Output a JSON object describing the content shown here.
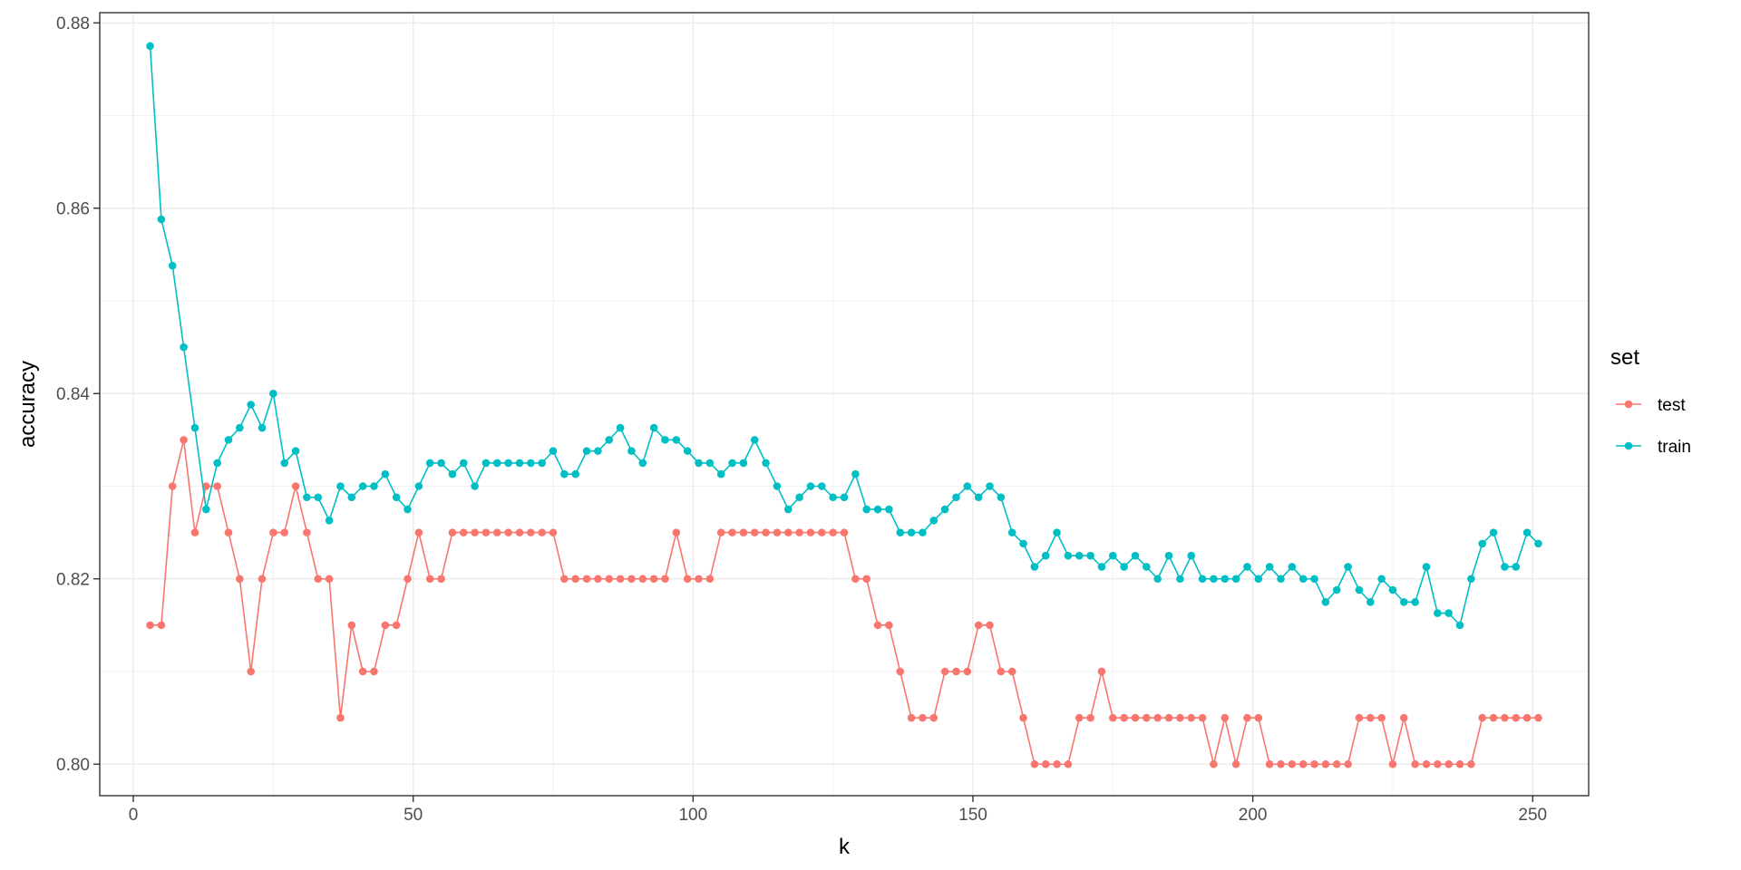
{
  "chart_data": {
    "type": "line",
    "xlabel": "k",
    "ylabel": "accuracy",
    "xlim": [
      -6,
      260
    ],
    "ylim": [
      0.7966,
      0.8811
    ],
    "x_ticks": [
      0,
      50,
      100,
      150,
      200,
      250
    ],
    "x_tick_labels": [
      "0",
      "50",
      "100",
      "150",
      "200",
      "250"
    ],
    "y_ticks": [
      0.8,
      0.82,
      0.84,
      0.86,
      0.88
    ],
    "y_tick_labels": [
      "0.80",
      "0.82",
      "0.84",
      "0.86",
      "0.88"
    ],
    "grid": true,
    "legend": {
      "title": "set",
      "position": "right"
    },
    "series": [
      {
        "name": "test",
        "color": "#F8766D",
        "x": [
          3,
          5,
          7,
          9,
          11,
          13,
          15,
          17,
          19,
          21,
          23,
          25,
          27,
          29,
          31,
          33,
          35,
          37,
          39,
          41,
          43,
          45,
          47,
          49,
          51,
          53,
          55,
          57,
          59,
          61,
          63,
          65,
          67,
          69,
          71,
          73,
          75,
          77,
          79,
          81,
          83,
          85,
          87,
          89,
          91,
          93,
          95,
          97,
          99,
          101,
          103,
          105,
          107,
          109,
          111,
          113,
          115,
          117,
          119,
          121,
          123,
          125,
          127,
          129,
          131,
          133,
          135,
          137,
          139,
          141,
          143,
          145,
          147,
          149,
          151,
          153,
          155,
          157,
          159,
          161,
          163,
          165,
          167,
          169,
          171,
          173,
          175,
          177,
          179,
          181,
          183,
          185,
          187,
          189,
          191,
          193,
          195,
          197,
          199,
          201,
          203,
          205,
          207,
          209,
          211,
          213,
          215,
          217,
          219,
          221,
          223,
          225,
          227,
          229,
          231,
          233,
          235,
          237,
          239,
          241,
          243,
          245,
          247,
          249,
          251
        ],
        "values": [
          0.815,
          0.815,
          0.83,
          0.835,
          0.825,
          0.83,
          0.83,
          0.825,
          0.82,
          0.81,
          0.82,
          0.825,
          0.825,
          0.83,
          0.825,
          0.82,
          0.82,
          0.805,
          0.815,
          0.81,
          0.81,
          0.815,
          0.815,
          0.82,
          0.825,
          0.82,
          0.82,
          0.825,
          0.825,
          0.825,
          0.825,
          0.825,
          0.825,
          0.825,
          0.825,
          0.825,
          0.825,
          0.82,
          0.82,
          0.82,
          0.82,
          0.82,
          0.82,
          0.82,
          0.82,
          0.82,
          0.82,
          0.825,
          0.82,
          0.82,
          0.82,
          0.825,
          0.825,
          0.825,
          0.825,
          0.825,
          0.825,
          0.825,
          0.825,
          0.825,
          0.825,
          0.825,
          0.825,
          0.82,
          0.82,
          0.815,
          0.815,
          0.81,
          0.805,
          0.805,
          0.805,
          0.81,
          0.81,
          0.81,
          0.815,
          0.815,
          0.81,
          0.81,
          0.805,
          0.8,
          0.8,
          0.8,
          0.8,
          0.805,
          0.805,
          0.81,
          0.805,
          0.805,
          0.805,
          0.805,
          0.805,
          0.805,
          0.805,
          0.805,
          0.805,
          0.8,
          0.805,
          0.8,
          0.805,
          0.805,
          0.8,
          0.8,
          0.8,
          0.8,
          0.8,
          0.8,
          0.8,
          0.8,
          0.805,
          0.805,
          0.805,
          0.8,
          0.805,
          0.8,
          0.8,
          0.8,
          0.8,
          0.8,
          0.8,
          0.805,
          0.805,
          0.805,
          0.805,
          0.805,
          0.805
        ]
      },
      {
        "name": "train",
        "color": "#00BFC4",
        "x": [
          3,
          5,
          7,
          9,
          11,
          13,
          15,
          17,
          19,
          21,
          23,
          25,
          27,
          29,
          31,
          33,
          35,
          37,
          39,
          41,
          43,
          45,
          47,
          49,
          51,
          53,
          55,
          57,
          59,
          61,
          63,
          65,
          67,
          69,
          71,
          73,
          75,
          77,
          79,
          81,
          83,
          85,
          87,
          89,
          91,
          93,
          95,
          97,
          99,
          101,
          103,
          105,
          107,
          109,
          111,
          113,
          115,
          117,
          119,
          121,
          123,
          125,
          127,
          129,
          131,
          133,
          135,
          137,
          139,
          141,
          143,
          145,
          147,
          149,
          151,
          153,
          155,
          157,
          159,
          161,
          163,
          165,
          167,
          169,
          171,
          173,
          175,
          177,
          179,
          181,
          183,
          185,
          187,
          189,
          191,
          193,
          195,
          197,
          199,
          201,
          203,
          205,
          207,
          209,
          211,
          213,
          215,
          217,
          219,
          221,
          223,
          225,
          227,
          229,
          231,
          233,
          235,
          237,
          239,
          241,
          243,
          245,
          247,
          249,
          251
        ],
        "values": [
          0.8775,
          0.8588,
          0.8538,
          0.845,
          0.8363,
          0.8275,
          0.8325,
          0.835,
          0.8363,
          0.8388,
          0.8363,
          0.84,
          0.8325,
          0.8338,
          0.8288,
          0.8288,
          0.8263,
          0.83,
          0.8288,
          0.83,
          0.83,
          0.8313,
          0.8288,
          0.8275,
          0.83,
          0.8325,
          0.8325,
          0.8313,
          0.8325,
          0.83,
          0.8325,
          0.8325,
          0.8325,
          0.8325,
          0.8325,
          0.8325,
          0.8338,
          0.8313,
          0.8313,
          0.8338,
          0.8338,
          0.835,
          0.8363,
          0.8338,
          0.8325,
          0.8363,
          0.835,
          0.835,
          0.8338,
          0.8325,
          0.8325,
          0.8313,
          0.8325,
          0.8325,
          0.835,
          0.8325,
          0.83,
          0.8275,
          0.8288,
          0.83,
          0.83,
          0.8288,
          0.8288,
          0.8313,
          0.8275,
          0.8275,
          0.8275,
          0.825,
          0.825,
          0.825,
          0.8263,
          0.8275,
          0.8288,
          0.83,
          0.8288,
          0.83,
          0.8288,
          0.825,
          0.8238,
          0.8213,
          0.8225,
          0.825,
          0.8225,
          0.8225,
          0.8225,
          0.8213,
          0.8225,
          0.8213,
          0.8225,
          0.8213,
          0.82,
          0.8225,
          0.82,
          0.8225,
          0.82,
          0.82,
          0.82,
          0.82,
          0.8213,
          0.82,
          0.8213,
          0.82,
          0.8213,
          0.82,
          0.82,
          0.8175,
          0.8188,
          0.8213,
          0.8188,
          0.8175,
          0.82,
          0.8188,
          0.8175,
          0.8175,
          0.8213,
          0.8163,
          0.8163,
          0.815,
          0.82,
          0.8238,
          0.825,
          0.8213,
          0.8213,
          0.825,
          0.8238
        ]
      }
    ]
  }
}
